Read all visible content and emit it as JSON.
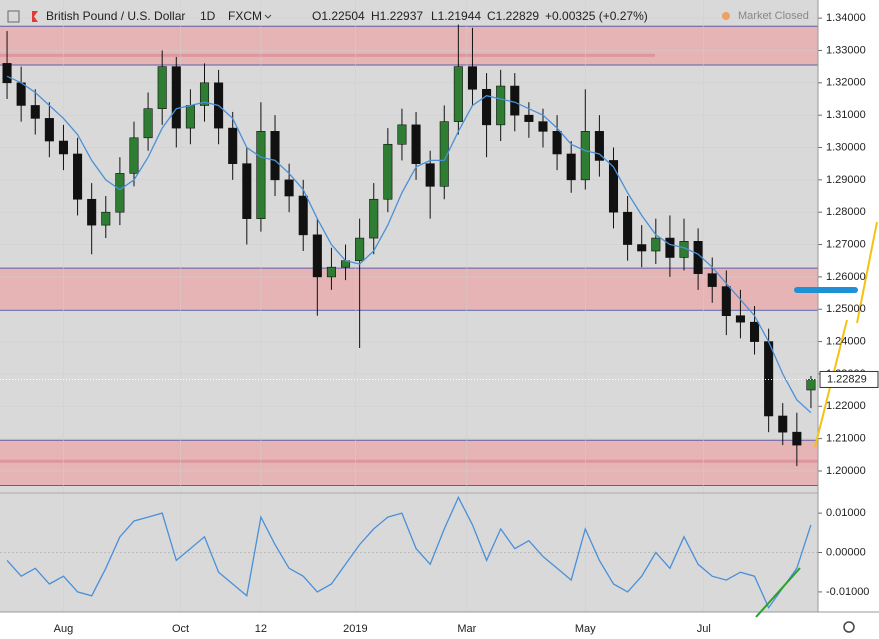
{
  "header": {
    "symbol": "British Pound / U.S. Dollar",
    "interval": "1D",
    "source": "FXCM",
    "open": "O1.22504",
    "high": "H1.22937",
    "low": "L1.21944",
    "close": "C1.22829",
    "change": "+0.00325 (+0.27%)",
    "status": "Market Closed"
  },
  "chart_data": {
    "type": "candlestick",
    "open": [
      1.326,
      1.32,
      1.313,
      1.309,
      1.302,
      1.298,
      1.284,
      1.276,
      1.28,
      1.292,
      1.303,
      1.312,
      1.325,
      1.306,
      1.313,
      1.32,
      1.306,
      1.295,
      1.278,
      1.305,
      1.29,
      1.285,
      1.273,
      1.26,
      1.263,
      1.265,
      1.272,
      1.284,
      1.301,
      1.307,
      1.295,
      1.288,
      1.308,
      1.325,
      1.318,
      1.307,
      1.319,
      1.31,
      1.308,
      1.305,
      1.298,
      1.29,
      1.305,
      1.296,
      1.28,
      1.27,
      1.268,
      1.272,
      1.266,
      1.271,
      1.261,
      1.257,
      1.248,
      1.246,
      1.24,
      1.217,
      1.212,
      1.22504
    ],
    "high": [
      1.336,
      1.325,
      1.318,
      1.314,
      1.307,
      1.303,
      1.289,
      1.285,
      1.297,
      1.308,
      1.317,
      1.33,
      1.328,
      1.318,
      1.326,
      1.324,
      1.311,
      1.3,
      1.314,
      1.31,
      1.295,
      1.29,
      1.278,
      1.269,
      1.27,
      1.278,
      1.289,
      1.306,
      1.312,
      1.311,
      1.299,
      1.313,
      1.338,
      1.337,
      1.323,
      1.324,
      1.323,
      1.314,
      1.312,
      1.31,
      1.302,
      1.318,
      1.31,
      1.3,
      1.285,
      1.276,
      1.278,
      1.279,
      1.278,
      1.275,
      1.266,
      1.262,
      1.256,
      1.251,
      1.244,
      1.221,
      1.218,
      1.22937
    ],
    "low": [
      1.315,
      1.308,
      1.304,
      1.297,
      1.293,
      1.279,
      1.267,
      1.272,
      1.276,
      1.288,
      1.299,
      1.307,
      1.3,
      1.301,
      1.308,
      1.301,
      1.29,
      1.27,
      1.274,
      1.285,
      1.28,
      1.268,
      1.248,
      1.256,
      1.259,
      1.238,
      1.267,
      1.28,
      1.296,
      1.29,
      1.278,
      1.284,
      1.304,
      1.313,
      1.297,
      1.302,
      1.305,
      1.303,
      1.3,
      1.293,
      1.286,
      1.287,
      1.291,
      1.275,
      1.265,
      1.263,
      1.264,
      1.26,
      1.262,
      1.256,
      1.252,
      1.242,
      1.241,
      1.236,
      1.212,
      1.208,
      1.2015,
      1.21944
    ],
    "close": [
      1.32,
      1.313,
      1.309,
      1.302,
      1.298,
      1.284,
      1.276,
      1.28,
      1.292,
      1.303,
      1.312,
      1.325,
      1.306,
      1.313,
      1.32,
      1.306,
      1.295,
      1.278,
      1.305,
      1.29,
      1.285,
      1.273,
      1.26,
      1.263,
      1.265,
      1.272,
      1.284,
      1.301,
      1.307,
      1.295,
      1.288,
      1.308,
      1.325,
      1.318,
      1.307,
      1.319,
      1.31,
      1.308,
      1.305,
      1.298,
      1.29,
      1.305,
      1.296,
      1.28,
      1.27,
      1.268,
      1.272,
      1.266,
      1.271,
      1.261,
      1.257,
      1.248,
      1.246,
      1.24,
      1.217,
      1.212,
      1.208,
      1.22829
    ],
    "up_color": "#2e7d32",
    "down_color": "#111111",
    "ma": {
      "color": "#4a90d9",
      "values": [
        1.322,
        1.32,
        1.317,
        1.313,
        1.309,
        1.304,
        1.296,
        1.29,
        1.287,
        1.29,
        1.297,
        1.306,
        1.312,
        1.313,
        1.314,
        1.313,
        1.309,
        1.3,
        1.297,
        1.296,
        1.292,
        1.287,
        1.278,
        1.27,
        1.265,
        1.264,
        1.268,
        1.276,
        1.286,
        1.294,
        1.296,
        1.296,
        1.305,
        1.313,
        1.316,
        1.315,
        1.314,
        1.312,
        1.31,
        1.306,
        1.301,
        1.299,
        1.298,
        1.294,
        1.286,
        1.279,
        1.273,
        1.27,
        1.269,
        1.267,
        1.263,
        1.258,
        1.253,
        1.248,
        1.24,
        1.23,
        1.222,
        1.218
      ]
    },
    "oscillator": {
      "color": "#4a90d9",
      "axis": "y2",
      "values": [
        -0.002,
        -0.006,
        -0.004,
        -0.008,
        -0.006,
        -0.01,
        -0.011,
        -0.004,
        0.004,
        0.008,
        0.009,
        0.01,
        -0.002,
        0.001,
        0.004,
        -0.005,
        -0.008,
        -0.011,
        0.009,
        0.002,
        -0.004,
        -0.006,
        -0.01,
        -0.008,
        -0.003,
        0.002,
        0.006,
        0.009,
        0.01,
        0.001,
        -0.003,
        0.006,
        0.014,
        0.007,
        -0.002,
        0.006,
        0.001,
        0.003,
        -0.001,
        -0.004,
        -0.007,
        0.006,
        -0.002,
        -0.008,
        -0.01,
        -0.006,
        0.0,
        -0.004,
        0.004,
        -0.003,
        -0.006,
        -0.007,
        -0.005,
        -0.006,
        -0.014,
        -0.009,
        -0.004,
        0.007
      ]
    },
    "ylim": [
      1.1935,
      1.3456
    ],
    "yticks": [
      {
        "value": 1.34,
        "label": "1.34000"
      },
      {
        "value": 1.33,
        "label": "1.33000"
      },
      {
        "value": 1.32,
        "label": "1.32000"
      },
      {
        "value": 1.31,
        "label": "1.31000"
      },
      {
        "value": 1.3,
        "label": "1.30000"
      },
      {
        "value": 1.29,
        "label": "1.29000"
      },
      {
        "value": 1.28,
        "label": "1.28000"
      },
      {
        "value": 1.27,
        "label": "1.27000"
      },
      {
        "value": 1.26,
        "label": "1.26000"
      },
      {
        "value": 1.25,
        "label": "1.25000"
      },
      {
        "value": 1.24,
        "label": "1.24000"
      },
      {
        "value": 1.23,
        "label": "1.23000"
      },
      {
        "value": 1.22,
        "label": "1.22000"
      },
      {
        "value": 1.21,
        "label": "1.21000"
      },
      {
        "value": 1.2,
        "label": "1.20000"
      }
    ],
    "y2lim": [
      -0.0151,
      0.0146
    ],
    "y2ticks": [
      {
        "value": 0.01,
        "label": "0.01000"
      },
      {
        "value": 0,
        "label": "0.00000"
      },
      {
        "value": -0.01,
        "label": "-0.01000"
      }
    ],
    "xticks": [
      {
        "value": 4,
        "label": "Aug"
      },
      {
        "value": 12.3,
        "label": "Oct"
      },
      {
        "value": 18,
        "label": "12"
      },
      {
        "value": 24.7,
        "label": "2019"
      },
      {
        "value": 32.6,
        "label": "Mar"
      },
      {
        "value": 41,
        "label": "May"
      },
      {
        "value": 49.4,
        "label": "Jul"
      }
    ],
    "zones": [
      {
        "low": 1.3255,
        "high": 1.3375
      },
      {
        "low": 1.2497,
        "high": 1.2627
      },
      {
        "low": 1.1955,
        "high": 1.2095
      }
    ],
    "zone_color": "#e6b4b4",
    "levels": [
      1.3285,
      1.203
    ],
    "grid": true
  }
}
